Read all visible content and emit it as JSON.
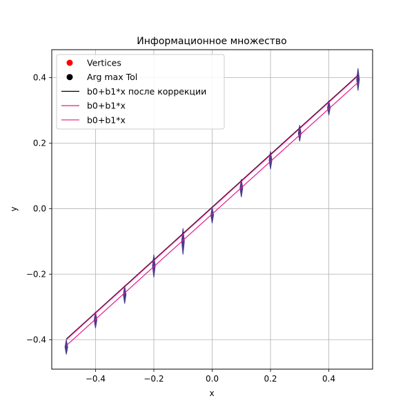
{
  "chart_data": {
    "type": "line",
    "title": "Информационное множество",
    "xlabel": "x",
    "ylabel": "y",
    "xlim": [
      -0.55,
      0.55
    ],
    "ylim": [
      -0.49,
      0.485
    ],
    "xticks": [
      -0.4,
      -0.2,
      0.0,
      0.2,
      0.4
    ],
    "xtick_labels": [
      "−0.4",
      "−0.2",
      "0.0",
      "0.2",
      "0.4"
    ],
    "yticks": [
      -0.4,
      -0.2,
      0.0,
      0.2,
      0.4
    ],
    "ytick_labels": [
      "−0.4",
      "−0.2",
      "0.0",
      "0.2",
      "0.4"
    ],
    "grid": true,
    "legend_position": "top-left",
    "legend": [
      {
        "label": "Vertices",
        "marker": "dot",
        "color": "#ff0000"
      },
      {
        "label": "Arg max Tol",
        "marker": "dot",
        "color": "#000000"
      },
      {
        "label": "b0+b1*x после коррекции",
        "marker": "line",
        "color": "#000000"
      },
      {
        "label": "b0+b1*x",
        "marker": "line",
        "color": "#e6198c"
      },
      {
        "label": "b0+b1*x",
        "marker": "line",
        "color": "#e6198c"
      }
    ],
    "series": [
      {
        "label_index": 2,
        "color": "#000000",
        "x": [
          -0.5,
          0.5
        ],
        "y": [
          -0.398,
          0.407
        ]
      },
      {
        "label_index": 3,
        "color": "#e6198c",
        "x": [
          -0.5,
          0.5
        ],
        "y": [
          -0.4,
          0.405
        ]
      },
      {
        "label_index": 4,
        "color": "#e6198c",
        "x": [
          -0.5,
          0.5
        ],
        "y": [
          -0.418,
          0.385
        ]
      }
    ],
    "intervals": {
      "color": "#483d8b",
      "x": [
        -0.5,
        -0.4,
        -0.3,
        -0.2,
        -0.1,
        0.0,
        0.1,
        0.2,
        0.3,
        0.4,
        0.5
      ],
      "y_low": [
        -0.445,
        -0.365,
        -0.29,
        -0.21,
        -0.14,
        -0.045,
        0.035,
        0.12,
        0.205,
        0.285,
        0.36
      ],
      "y_high": [
        -0.4,
        -0.315,
        -0.235,
        -0.14,
        -0.06,
        0.005,
        0.09,
        0.175,
        0.255,
        0.33,
        0.428
      ]
    }
  }
}
